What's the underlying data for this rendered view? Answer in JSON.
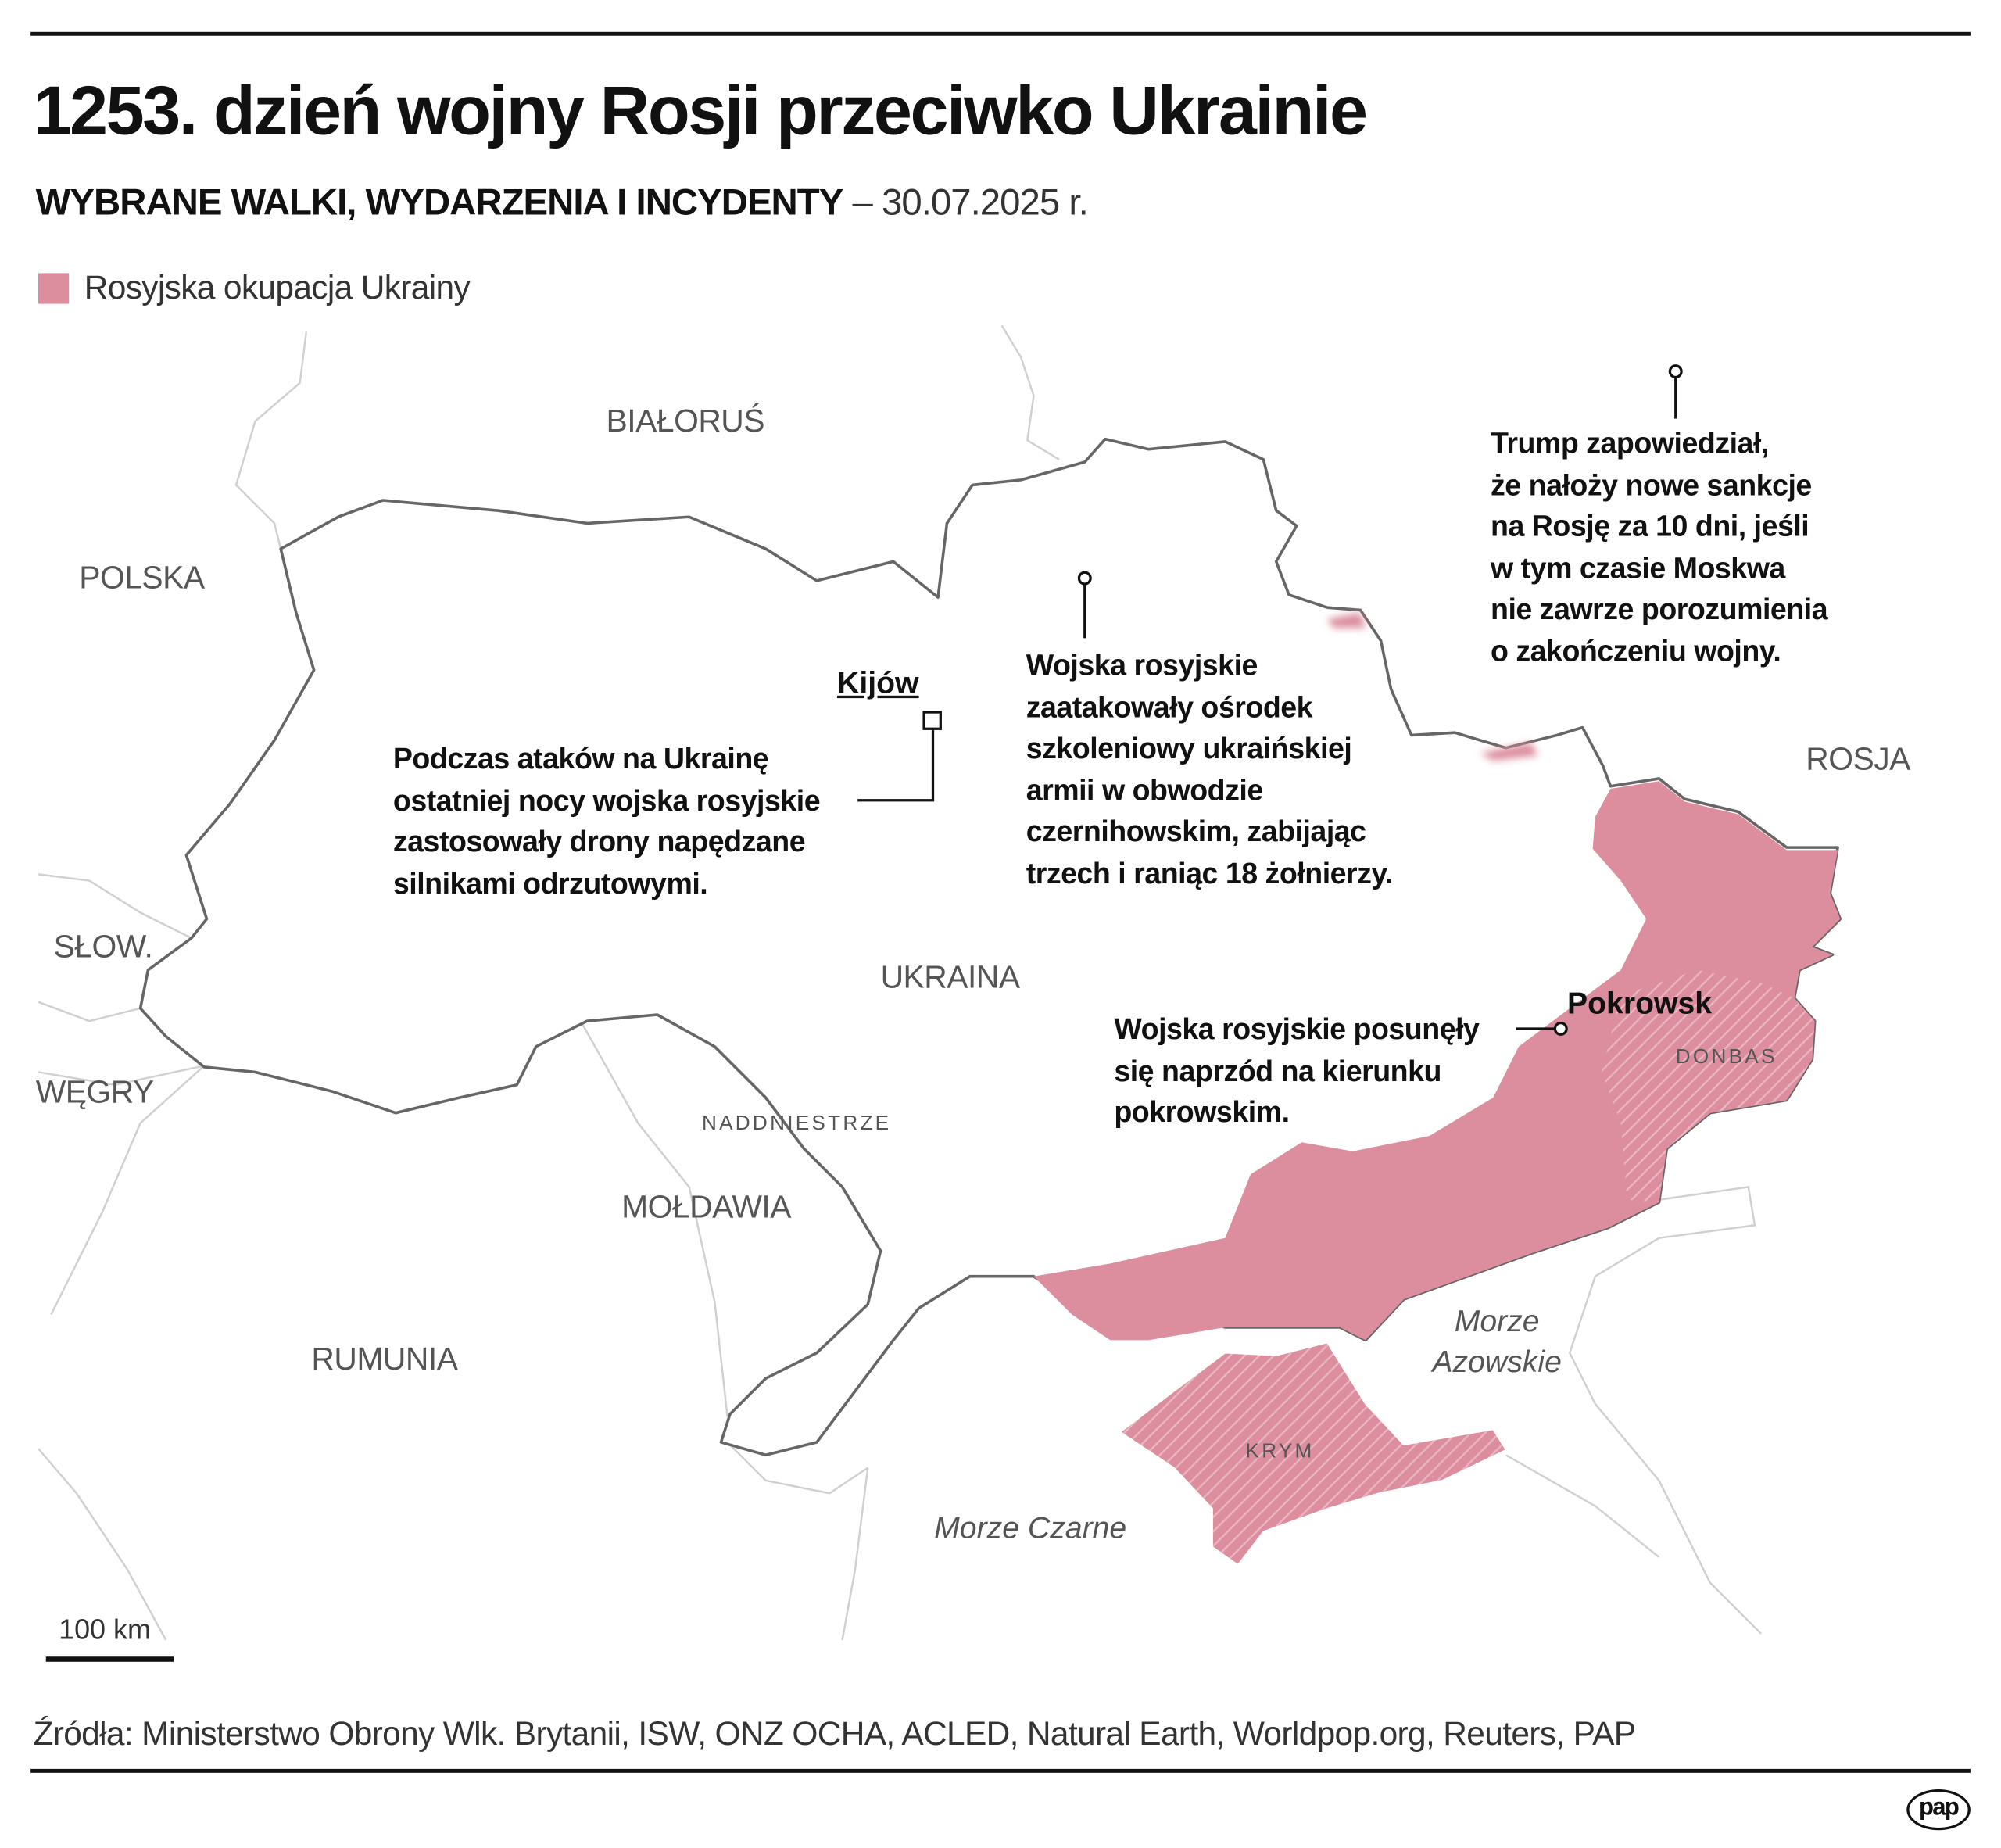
{
  "header": {
    "title": "1253. dzień wojny Rosji przeciwko Ukrainie",
    "subtitle_bold": "WYBRANE WALKI, WYDARZENIA I INCYDENTY",
    "subtitle_date": "– 30.07.2025 r."
  },
  "legend": {
    "label": "Rosyjska okupacja Ukrainy",
    "color": "#dc8d9e"
  },
  "map": {
    "countries": {
      "belarus": "BIAŁORUŚ",
      "poland": "POLSKA",
      "slovakia": "SŁOW.",
      "hungary": "WĘGRY",
      "moldova": "MOŁDAWIA",
      "romania": "RUMUNIA",
      "ukraine": "UKRAINA",
      "russia": "ROSJA"
    },
    "regions": {
      "transnistria": "NADDNIESTRZE",
      "donbas": "DONBAS",
      "crimea": "KRYM"
    },
    "seas": {
      "azov_line1": "Morze",
      "azov_line2": "Azowskie",
      "black": "Morze Czarne"
    },
    "cities": {
      "kyiv": "Kijów",
      "pokrovsk": "Pokrowsk"
    },
    "annotations": {
      "kyiv": [
        "Podczas ataków na Ukrainę",
        "ostatniej nocy wojska rosyjskie",
        "zastosowały drony napędzane",
        "silnikami odrzutowymi."
      ],
      "chernihiv": [
        "Wojska rosyjskie",
        "zaatakowały ośrodek",
        "szkoleniowy ukraińskiej",
        "armii w obwodzie",
        "czernihowskim, zabijając",
        "trzech i raniąc 18 żołnierzy."
      ],
      "trump": [
        "Trump zapowiedział,",
        "że nałoży nowe sankcje",
        "na Rosję za 10 dni, jeśli",
        "w tym czasie Moskwa",
        "nie zawrze porozumienia",
        "o zakończeniu wojny."
      ],
      "pokrovsk": [
        "Wojska rosyjskie posunęły",
        "się naprzód na kierunku",
        "pokrowskim."
      ]
    },
    "scale": "100 km",
    "colors": {
      "occupied": "#dc8d9e",
      "border": "#666666",
      "neighbor_border": "#cccccc"
    }
  },
  "footer": {
    "source": "Źródła: Ministerstwo Obrony Wlk. Brytanii, ISW, ONZ OCHA, ACLED, Natural Earth, Worldpop.org, Reuters, PAP",
    "logo": "pap"
  }
}
